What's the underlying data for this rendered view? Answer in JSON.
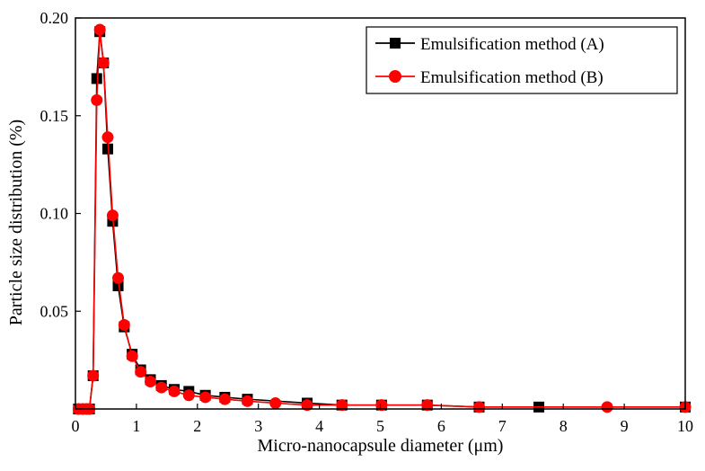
{
  "chart_data": {
    "type": "line",
    "xlabel": "Micro-nanocapsule diameter (μm)",
    "ylabel": "Particle size distribution (%)",
    "xlim": [
      0,
      10
    ],
    "ylim": [
      0,
      0.2
    ],
    "xticks": [
      "0",
      "1",
      "2",
      "3",
      "4",
      "5",
      "6",
      "7",
      "8",
      "9",
      "10"
    ],
    "yticks": [
      "0.05",
      "0.10",
      "0.15",
      "0.20"
    ],
    "grid": false,
    "legend_position": "top-right",
    "series": [
      {
        "name": "Emulsification method (A)",
        "color": "#000000",
        "marker": "square",
        "x": [
          0.05,
          0.12,
          0.18,
          0.23,
          0.29,
          0.35,
          0.4,
          0.46,
          0.53,
          0.61,
          0.7,
          0.8,
          0.93,
          1.07,
          1.23,
          1.41,
          1.62,
          1.86,
          2.13,
          2.45,
          2.82,
          3.8,
          4.37,
          5.02,
          5.77,
          6.62,
          7.6,
          10.0
        ],
        "y": [
          0.0,
          0.0,
          0.0,
          0.0,
          0.017,
          0.169,
          0.193,
          0.177,
          0.133,
          0.096,
          0.063,
          0.042,
          0.028,
          0.02,
          0.015,
          0.012,
          0.01,
          0.009,
          0.007,
          0.006,
          0.005,
          0.003,
          0.002,
          0.002,
          0.002,
          0.001,
          0.001,
          0.001
        ]
      },
      {
        "name": "Emulsification method (B)",
        "color": "#ff0000",
        "marker": "circle",
        "x": [
          0.05,
          0.12,
          0.18,
          0.23,
          0.29,
          0.35,
          0.4,
          0.46,
          0.53,
          0.61,
          0.7,
          0.8,
          0.93,
          1.07,
          1.23,
          1.41,
          1.62,
          1.86,
          2.13,
          2.45,
          2.82,
          3.28,
          3.8,
          4.37,
          5.02,
          5.77,
          6.62,
          8.72,
          10.0
        ],
        "y": [
          0.0,
          0.0,
          0.0,
          0.0,
          0.017,
          0.158,
          0.194,
          0.177,
          0.139,
          0.099,
          0.067,
          0.043,
          0.027,
          0.019,
          0.014,
          0.011,
          0.009,
          0.007,
          0.006,
          0.005,
          0.004,
          0.003,
          0.002,
          0.002,
          0.002,
          0.002,
          0.001,
          0.001,
          0.001
        ]
      }
    ]
  }
}
